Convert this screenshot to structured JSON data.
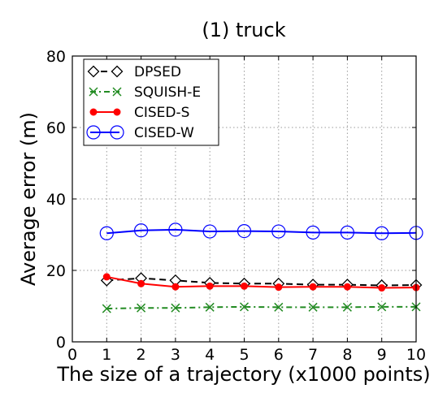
{
  "chart_data": {
    "type": "line",
    "title": "(1) truck",
    "xlabel": "The size of a trajectory (x1000 points)",
    "ylabel": "Average error (m)",
    "xlim": [
      0,
      10
    ],
    "ylim": [
      0,
      80
    ],
    "xticks": [
      0,
      1,
      2,
      3,
      4,
      5,
      6,
      7,
      8,
      9,
      10
    ],
    "yticks": [
      0,
      20,
      40,
      60,
      80
    ],
    "grid": true,
    "legend_position": "top-left",
    "x": [
      1,
      2,
      3,
      4,
      5,
      6,
      7,
      8,
      9,
      10
    ],
    "series": [
      {
        "name": "DPSED",
        "color": "#000000",
        "linestyle": "dashed",
        "marker": "diamond",
        "values": [
          17.2,
          17.8,
          17.2,
          16.5,
          16.3,
          16.3,
          16.0,
          16.0,
          15.8,
          15.9
        ]
      },
      {
        "name": "SQUISH-E",
        "color": "#228b22",
        "linestyle": "dashdot",
        "marker": "x",
        "values": [
          9.3,
          9.5,
          9.5,
          9.7,
          9.8,
          9.7,
          9.7,
          9.7,
          9.8,
          9.8
        ]
      },
      {
        "name": "CISED-S",
        "color": "#ff0000",
        "linestyle": "solid",
        "marker": "circle-filled",
        "values": [
          18.2,
          16.3,
          15.4,
          15.6,
          15.6,
          15.3,
          15.4,
          15.4,
          15.1,
          15.2
        ]
      },
      {
        "name": "CISED-W",
        "color": "#0000ff",
        "linestyle": "solid",
        "marker": "circle-open",
        "values": [
          30.4,
          31.2,
          31.4,
          30.9,
          31.0,
          30.9,
          30.6,
          30.6,
          30.4,
          30.5
        ]
      }
    ]
  }
}
